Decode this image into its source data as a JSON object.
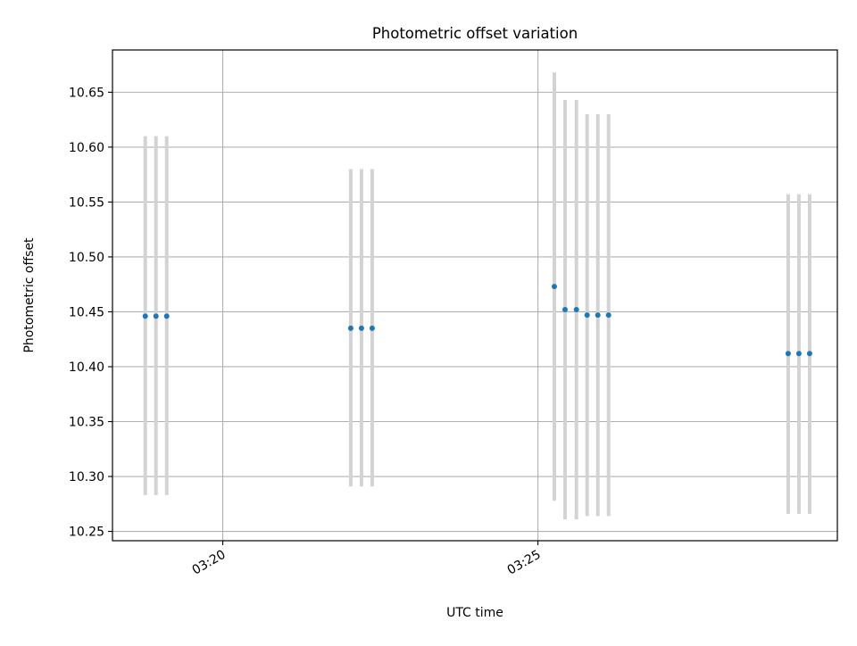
{
  "colors": {
    "background": "#ffffff",
    "grid": "#b0b0b0",
    "errorbar": "#d3d3d3",
    "marker": "#1f77b4",
    "axes": "#000000"
  },
  "chart_data": {
    "type": "scatter",
    "title": "Photometric offset variation",
    "xlabel": "UTC time",
    "ylabel": "Photometric offset",
    "grid": true,
    "x_unit": "minutes after 03:00 UTC",
    "xlim": [
      18.25,
      29.75
    ],
    "ylim": [
      10.2415,
      10.6885
    ],
    "x_ticks": [
      {
        "value": 20,
        "label": "03:20"
      },
      {
        "value": 25,
        "label": "03:25"
      }
    ],
    "y_ticks": [
      {
        "value": 10.25,
        "label": "10.25"
      },
      {
        "value": 10.3,
        "label": "10.30"
      },
      {
        "value": 10.35,
        "label": "10.35"
      },
      {
        "value": 10.4,
        "label": "10.40"
      },
      {
        "value": 10.45,
        "label": "10.45"
      },
      {
        "value": 10.5,
        "label": "10.50"
      },
      {
        "value": 10.55,
        "label": "10.55"
      },
      {
        "value": 10.6,
        "label": "10.60"
      },
      {
        "value": 10.65,
        "label": "10.65"
      }
    ],
    "points": [
      {
        "x": 18.77,
        "y": 10.446,
        "err_low": 10.283,
        "err_high": 10.61
      },
      {
        "x": 18.94,
        "y": 10.446,
        "err_low": 10.283,
        "err_high": 10.61
      },
      {
        "x": 19.11,
        "y": 10.446,
        "err_low": 10.283,
        "err_high": 10.61
      },
      {
        "x": 22.03,
        "y": 10.435,
        "err_low": 10.291,
        "err_high": 10.58
      },
      {
        "x": 22.2,
        "y": 10.435,
        "err_low": 10.291,
        "err_high": 10.58
      },
      {
        "x": 22.37,
        "y": 10.435,
        "err_low": 10.291,
        "err_high": 10.58
      },
      {
        "x": 25.26,
        "y": 10.473,
        "err_low": 10.278,
        "err_high": 10.668
      },
      {
        "x": 25.43,
        "y": 10.452,
        "err_low": 10.261,
        "err_high": 10.643
      },
      {
        "x": 25.61,
        "y": 10.452,
        "err_low": 10.261,
        "err_high": 10.643
      },
      {
        "x": 25.78,
        "y": 10.447,
        "err_low": 10.264,
        "err_high": 10.63
      },
      {
        "x": 25.95,
        "y": 10.447,
        "err_low": 10.264,
        "err_high": 10.63
      },
      {
        "x": 26.12,
        "y": 10.447,
        "err_low": 10.264,
        "err_high": 10.63
      },
      {
        "x": 28.97,
        "y": 10.412,
        "err_low": 10.266,
        "err_high": 10.557
      },
      {
        "x": 29.14,
        "y": 10.412,
        "err_low": 10.266,
        "err_high": 10.557
      },
      {
        "x": 29.31,
        "y": 10.412,
        "err_low": 10.266,
        "err_high": 10.557
      }
    ]
  }
}
